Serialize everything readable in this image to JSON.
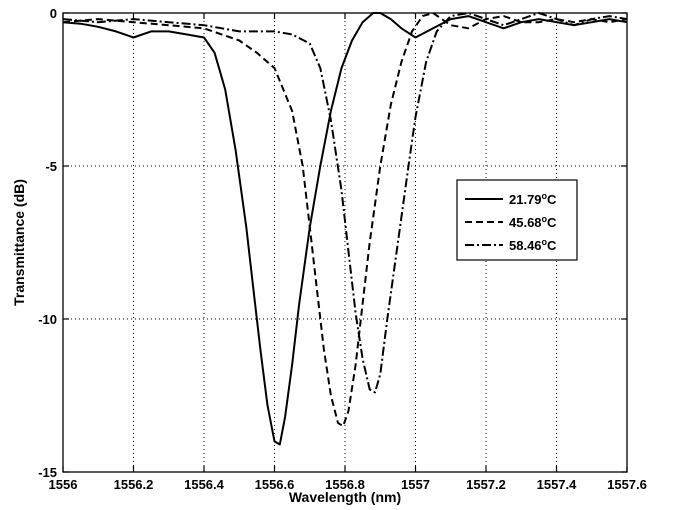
{
  "chart_data": {
    "type": "line",
    "xlabel": "Wavelength (nm)",
    "ylabel": "Transmittance (dB)",
    "xlim": [
      1556,
      1557.6
    ],
    "ylim": [
      -15,
      0
    ],
    "xticks": [
      1556,
      1556.2,
      1556.4,
      1556.6,
      1556.8,
      1557,
      1557.2,
      1557.4,
      1557.6
    ],
    "xtick_labels": [
      "1556",
      "1556.2",
      "1556.4",
      "1556.6",
      "1556.8",
      "1557",
      "1557.2",
      "1557.4",
      "1557.6"
    ],
    "yticks": [
      -15,
      -10,
      -5,
      0
    ],
    "ytick_labels": [
      "-15",
      "-10",
      "-5",
      "0"
    ],
    "grid": true,
    "legend_position": "center-right",
    "series": [
      {
        "name": "21.79°C",
        "legend_value": "21.79",
        "legend_unit": "C",
        "dash": "solid",
        "x": [
          1556.0,
          1556.05,
          1556.1,
          1556.15,
          1556.2,
          1556.25,
          1556.3,
          1556.35,
          1556.4,
          1556.43,
          1556.46,
          1556.49,
          1556.52,
          1556.54,
          1556.56,
          1556.58,
          1556.6,
          1556.615,
          1556.63,
          1556.65,
          1556.67,
          1556.7,
          1556.73,
          1556.76,
          1556.79,
          1556.82,
          1556.85,
          1556.88,
          1556.9,
          1556.93,
          1556.96,
          1557.0,
          1557.05,
          1557.1,
          1557.15,
          1557.2,
          1557.25,
          1557.3,
          1557.35,
          1557.4,
          1557.45,
          1557.5,
          1557.55,
          1557.6
        ],
        "y": [
          -0.3,
          -0.35,
          -0.45,
          -0.6,
          -0.8,
          -0.6,
          -0.6,
          -0.7,
          -0.8,
          -1.3,
          -2.5,
          -4.5,
          -7.0,
          -9.0,
          -11.0,
          -12.8,
          -14.0,
          -14.1,
          -13.2,
          -11.5,
          -9.5,
          -7.0,
          -5.0,
          -3.2,
          -1.8,
          -0.9,
          -0.3,
          0.0,
          0.0,
          -0.2,
          -0.5,
          -0.8,
          -0.5,
          -0.2,
          -0.1,
          -0.3,
          -0.5,
          -0.3,
          -0.2,
          -0.3,
          -0.4,
          -0.3,
          -0.2,
          -0.3
        ]
      },
      {
        "name": "45.68°C",
        "legend_value": "45.68",
        "legend_unit": "C",
        "dash": "dash",
        "x": [
          1556.0,
          1556.1,
          1556.2,
          1556.3,
          1556.4,
          1556.45,
          1556.5,
          1556.55,
          1556.6,
          1556.65,
          1556.68,
          1556.7,
          1556.72,
          1556.74,
          1556.76,
          1556.78,
          1556.795,
          1556.81,
          1556.83,
          1556.85,
          1556.87,
          1556.9,
          1556.93,
          1556.96,
          1556.99,
          1557.02,
          1557.05,
          1557.1,
          1557.15,
          1557.2,
          1557.25,
          1557.3,
          1557.35,
          1557.4,
          1557.45,
          1557.5,
          1557.55,
          1557.6
        ],
        "y": [
          -0.3,
          -0.2,
          -0.3,
          -0.4,
          -0.5,
          -0.7,
          -0.9,
          -1.3,
          -1.8,
          -3.2,
          -5.0,
          -7.0,
          -9.0,
          -11.0,
          -12.5,
          -13.4,
          -13.5,
          -13.0,
          -11.5,
          -9.5,
          -7.5,
          -5.0,
          -3.0,
          -1.6,
          -0.6,
          -0.1,
          0.0,
          -0.4,
          -0.5,
          -0.2,
          -0.1,
          -0.3,
          -0.3,
          -0.2,
          -0.3,
          -0.2,
          -0.3,
          -0.2
        ]
      },
      {
        "name": "58.46°C",
        "legend_value": "58.46",
        "legend_unit": "C",
        "dash": "dashdot",
        "x": [
          1556.0,
          1556.1,
          1556.2,
          1556.3,
          1556.4,
          1556.5,
          1556.6,
          1556.65,
          1556.7,
          1556.73,
          1556.76,
          1556.79,
          1556.81,
          1556.83,
          1556.85,
          1556.87,
          1556.885,
          1556.9,
          1556.92,
          1556.95,
          1556.98,
          1557.0,
          1557.03,
          1557.06,
          1557.1,
          1557.15,
          1557.2,
          1557.25,
          1557.3,
          1557.35,
          1557.4,
          1557.45,
          1557.5,
          1557.55,
          1557.6
        ],
        "y": [
          -0.2,
          -0.3,
          -0.2,
          -0.3,
          -0.4,
          -0.6,
          -0.6,
          -0.7,
          -1.0,
          -1.8,
          -3.5,
          -5.8,
          -7.8,
          -9.8,
          -11.3,
          -12.3,
          -12.4,
          -11.8,
          -10.0,
          -7.5,
          -5.0,
          -3.4,
          -1.6,
          -0.6,
          -0.1,
          0.0,
          -0.2,
          -0.4,
          -0.2,
          0.0,
          -0.2,
          -0.4,
          -0.2,
          -0.1,
          -0.2
        ]
      }
    ]
  }
}
